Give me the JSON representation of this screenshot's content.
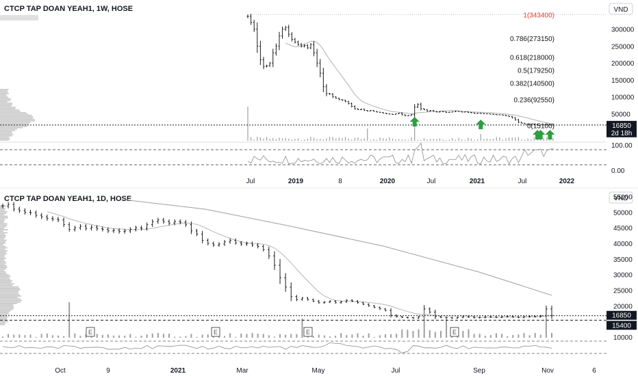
{
  "colors": {
    "bar": "#1a1a1a",
    "ma": "#b0b0b0",
    "fib_text": "#111111",
    "fib_top": "#e53935",
    "up_arrow": "#2e9e3e",
    "price_label_bg": "#131722",
    "price_label_text": "#ffffff",
    "grid_text": "#131722",
    "volume": "#9e9e9e",
    "vp": "#c8c8c8"
  },
  "chart_data": [
    {
      "type": "bar",
      "title": "CTCP TAP DOAN YEAH1, 1W, HOSE",
      "currency": "VND",
      "x_ticks": [
        "Jul",
        "2019",
        "8",
        "2020",
        "Jul",
        "2021",
        "Jul",
        "2022"
      ],
      "x_tick_bold": [
        false,
        true,
        false,
        true,
        false,
        true,
        false,
        true
      ],
      "y_ticks": [
        50000,
        100000,
        150000,
        200000,
        250000,
        300000
      ],
      "y_tick_labels": [
        "50000",
        "100000",
        "150000",
        "200000",
        "250000",
        "300000"
      ],
      "ylim": [
        -30000,
        350000
      ],
      "last_price": 16850,
      "last_price_label": "16850",
      "countdown": "2d 18h",
      "fib_levels": [
        {
          "label": "1(343400)",
          "value": 343400
        },
        {
          "label": "0.786(273150)",
          "value": 273150
        },
        {
          "label": "0.618(218000)",
          "value": 218000
        },
        {
          "label": "0.5(179250)",
          "value": 179250
        },
        {
          "label": "0.382(140500)",
          "value": 140500
        },
        {
          "label": "0.236(92550)",
          "value": 92550
        },
        {
          "label": "0(15100)",
          "value": 15100
        }
      ],
      "series": [
        {
          "values": [
            338000,
            320000,
            300000,
            250000,
            210000,
            190000,
            192000,
            200000,
            230000,
            250000,
            280000,
            300000,
            305000,
            285000,
            270000,
            262000,
            255000,
            250000,
            252000,
            245000,
            255000,
            230000,
            200000,
            170000,
            130000,
            110000,
            108000,
            100000,
            96000,
            92000,
            90000,
            86000,
            80000,
            72000,
            65000,
            62000,
            64000,
            60000,
            58000,
            60000,
            57000,
            55000,
            54000,
            52000,
            50000,
            49000,
            48000,
            50000,
            52000,
            47000,
            44000,
            45000,
            48000,
            70000,
            78000,
            65000,
            62000,
            58000,
            60000,
            57000,
            55000,
            57000,
            56000,
            54000,
            55000,
            56000,
            58000,
            57000,
            55000,
            56000,
            54000,
            53000,
            51000,
            52000,
            51000,
            50000,
            50000,
            49000,
            48000,
            47000,
            47000,
            46000,
            44000,
            42000,
            38000,
            32000,
            25000,
            22000,
            20000,
            19000,
            19000,
            18000,
            17000,
            17000,
            17000,
            18000,
            17000,
            16850
          ]
        }
      ],
      "up_arrows": [
        "2020",
        "Jul 2020",
        "Jul 2021",
        "2022"
      ],
      "oscillator_ticks": [
        "100.00",
        "0.00"
      ]
    },
    {
      "type": "bar",
      "title": "CTCP TAP DOAN YEAH1, 1D, HOSE",
      "currency": "VND",
      "x_ticks": [
        "Oct",
        "9",
        "2021",
        "Mar",
        "May",
        "Jul",
        "Sep",
        "Nov",
        "6"
      ],
      "x_tick_bold": [
        false,
        false,
        true,
        false,
        false,
        false,
        false,
        false,
        false
      ],
      "y_ticks": [
        10000,
        15000,
        20000,
        25000,
        30000,
        35000,
        40000,
        45000,
        50000,
        55000
      ],
      "y_tick_labels": [
        "10000",
        "",
        "20000",
        "25000",
        "30000",
        "35000",
        "40000",
        "45000",
        "50000",
        "55000"
      ],
      "ylim": [
        10000,
        56000
      ],
      "last_price": 16850,
      "last_price_label": "16850",
      "support_price": 15400,
      "support_price_label": "15400",
      "earnings_marker": "E",
      "series": [
        {
          "values": [
            52000,
            52500,
            51000,
            50500,
            50000,
            49800,
            49000,
            48500,
            48000,
            47800,
            47500,
            46000,
            44500,
            45000,
            45500,
            44800,
            45200,
            44700,
            44500,
            44000,
            44200,
            43800,
            44000,
            44500,
            45000,
            44800,
            46000,
            47000,
            47500,
            47000,
            46500,
            47000,
            46800,
            46000,
            44000,
            43000,
            41000,
            40000,
            39500,
            39800,
            40500,
            41000,
            40200,
            39800,
            40000,
            39500,
            39000,
            38000,
            36000,
            33000,
            29000,
            26000,
            23000,
            22000,
            22500,
            22000,
            21500,
            21000,
            21200,
            21500,
            21000,
            21300,
            21800,
            21500,
            21000,
            20500,
            20000,
            19500,
            19000,
            18500,
            17000,
            16500,
            16300,
            16200,
            16100,
            16500,
            19000,
            18000,
            16500,
            16300,
            16200,
            16100,
            16300,
            16500,
            16400,
            16200,
            16300,
            16500,
            16400,
            16300,
            16500,
            16600,
            16400,
            16300,
            16500,
            16600,
            16500,
            16800,
            19000,
            16850
          ]
        }
      ],
      "earnings_at": [
        "Nov",
        "2021",
        "Apr",
        "Jul"
      ]
    }
  ]
}
